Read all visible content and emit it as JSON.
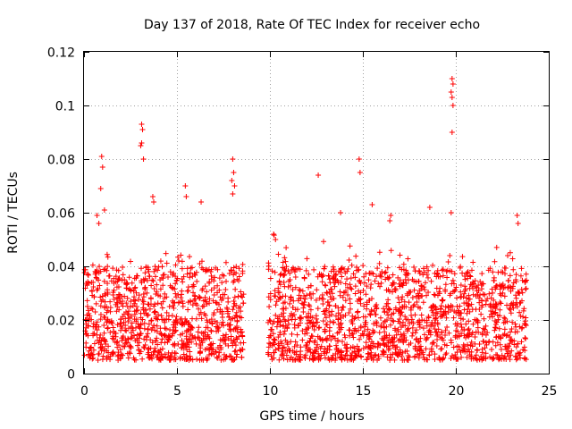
{
  "chart_data": {
    "type": "scatter",
    "title": "Day 137 of 2018, Rate Of TEC Index for receiver echo",
    "xlabel": "GPS time / hours",
    "ylabel": "ROTI / TECUs",
    "xlim": [
      0,
      25
    ],
    "ylim": [
      0,
      0.12
    ],
    "xticks": [
      0,
      5,
      10,
      15,
      20,
      25
    ],
    "xtick_labels": [
      "0",
      "5",
      "10",
      "15",
      "20",
      "25"
    ],
    "yticks": [
      0,
      0.02,
      0.04,
      0.06,
      0.08,
      0.1,
      0.12
    ],
    "ytick_labels": [
      "0",
      "0.02",
      "0.04",
      "0.06",
      "0.08",
      "0.1",
      "0.12"
    ],
    "grid": true,
    "marker": "+",
    "color": "#ff0000",
    "data_gap_hours": [
      8.6,
      9.9
    ],
    "x_range": [
      0,
      23.8
    ],
    "bulk_range": [
      0.005,
      0.04
    ],
    "series": [
      {
        "x": [
          0.95,
          1.0,
          0.9,
          1.1,
          3.1,
          3.15,
          3.1,
          3.05,
          3.2,
          8.0,
          8.05,
          7.95,
          8.1,
          8.0,
          12.6,
          14.8,
          14.85,
          15.5,
          19.8,
          19.85,
          19.75,
          19.8,
          19.85,
          19.8,
          19.75,
          5.45,
          5.5,
          3.7,
          3.75,
          18.6,
          16.5,
          16.45,
          13.8,
          6.3,
          0.7,
          0.8,
          10.2,
          10.3,
          23.3,
          23.35
        ],
        "y": [
          0.081,
          0.077,
          0.069,
          0.061,
          0.093,
          0.091,
          0.086,
          0.085,
          0.08,
          0.08,
          0.075,
          0.072,
          0.07,
          0.067,
          0.074,
          0.08,
          0.075,
          0.063,
          0.11,
          0.108,
          0.105,
          0.103,
          0.1,
          0.09,
          0.06,
          0.07,
          0.066,
          0.066,
          0.064,
          0.062,
          0.059,
          0.057,
          0.06,
          0.064,
          0.059,
          0.056,
          0.052,
          0.05,
          0.059,
          0.056
        ]
      }
    ]
  }
}
